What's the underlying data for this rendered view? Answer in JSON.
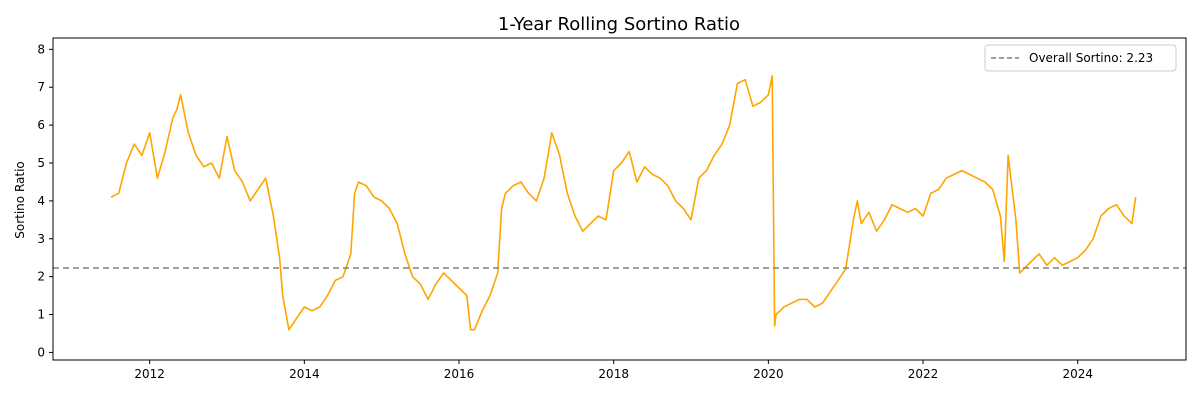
{
  "chart_data": {
    "type": "line",
    "title": "1-Year Rolling Sortino Ratio",
    "xlabel": "",
    "ylabel": "Sortino Ratio",
    "xlim": [
      2010.75,
      2025.4
    ],
    "ylim": [
      -0.2,
      8.3
    ],
    "xticks": [
      2012,
      2014,
      2016,
      2018,
      2020,
      2022,
      2024
    ],
    "yticks": [
      0,
      1,
      2,
      3,
      4,
      5,
      6,
      7,
      8
    ],
    "grid": false,
    "legend_position": "top-right",
    "series": [
      {
        "color": "#FFA500",
        "x": [
          2011.5,
          2011.6,
          2011.7,
          2011.8,
          2011.9,
          2012.0,
          2012.1,
          2012.2,
          2012.3,
          2012.35,
          2012.4,
          2012.5,
          2012.6,
          2012.7,
          2012.8,
          2012.9,
          2013.0,
          2013.1,
          2013.2,
          2013.3,
          2013.4,
          2013.5,
          2013.6,
          2013.68,
          2013.72,
          2013.8,
          2013.9,
          2014.0,
          2014.1,
          2014.2,
          2014.3,
          2014.4,
          2014.5,
          2014.6,
          2014.65,
          2014.7,
          2014.8,
          2014.9,
          2015.0,
          2015.1,
          2015.2,
          2015.3,
          2015.4,
          2015.5,
          2015.6,
          2015.7,
          2015.8,
          2015.9,
          2016.0,
          2016.1,
          2016.15,
          2016.2,
          2016.3,
          2016.4,
          2016.5,
          2016.55,
          2016.6,
          2016.7,
          2016.8,
          2016.9,
          2017.0,
          2017.1,
          2017.2,
          2017.3,
          2017.4,
          2017.5,
          2017.6,
          2017.7,
          2017.8,
          2017.9,
          2018.0,
          2018.1,
          2018.2,
          2018.3,
          2018.4,
          2018.5,
          2018.6,
          2018.7,
          2018.8,
          2018.9,
          2019.0,
          2019.1,
          2019.2,
          2019.3,
          2019.4,
          2019.5,
          2019.6,
          2019.7,
          2019.8,
          2019.9,
          2020.0,
          2020.05,
          2020.08,
          2020.1,
          2020.2,
          2020.3,
          2020.4,
          2020.5,
          2020.6,
          2020.7,
          2020.8,
          2020.9,
          2021.0,
          2021.1,
          2021.15,
          2021.2,
          2021.3,
          2021.4,
          2021.5,
          2021.6,
          2021.7,
          2021.8,
          2021.9,
          2022.0,
          2022.1,
          2022.2,
          2022.3,
          2022.4,
          2022.5,
          2022.6,
          2022.7,
          2022.8,
          2022.9,
          2023.0,
          2023.05,
          2023.1,
          2023.2,
          2023.25,
          2023.3,
          2023.4,
          2023.5,
          2023.6,
          2023.7,
          2023.8,
          2023.9,
          2024.0,
          2024.1,
          2024.2,
          2024.3,
          2024.4,
          2024.5,
          2024.6,
          2024.7,
          2024.75
        ],
        "y": [
          4.1,
          4.2,
          5.0,
          5.5,
          5.2,
          5.8,
          4.6,
          5.3,
          6.2,
          6.4,
          6.8,
          5.8,
          5.2,
          4.9,
          5.0,
          4.6,
          5.7,
          4.8,
          4.5,
          4.0,
          4.3,
          4.6,
          3.6,
          2.5,
          1.5,
          0.6,
          0.9,
          1.2,
          1.1,
          1.2,
          1.5,
          1.9,
          2.0,
          2.6,
          4.2,
          4.5,
          4.4,
          4.1,
          4.0,
          3.8,
          3.4,
          2.6,
          2.0,
          1.8,
          1.4,
          1.8,
          2.1,
          1.9,
          1.7,
          1.5,
          0.6,
          0.6,
          1.1,
          1.5,
          2.1,
          3.8,
          4.2,
          4.4,
          4.5,
          4.2,
          4.0,
          4.6,
          5.8,
          5.2,
          4.2,
          3.6,
          3.2,
          3.4,
          3.6,
          3.5,
          4.8,
          5.0,
          5.3,
          4.5,
          4.9,
          4.7,
          4.6,
          4.4,
          4.0,
          3.8,
          3.5,
          4.6,
          4.8,
          5.2,
          5.5,
          6.0,
          7.1,
          7.2,
          6.5,
          6.6,
          6.8,
          7.3,
          0.7,
          1.0,
          1.2,
          1.3,
          1.4,
          1.4,
          1.2,
          1.3,
          1.6,
          1.9,
          2.2,
          3.5,
          4.0,
          3.4,
          3.7,
          3.2,
          3.5,
          3.9,
          3.8,
          3.7,
          3.8,
          3.6,
          4.2,
          4.3,
          4.6,
          4.7,
          4.8,
          4.7,
          4.6,
          4.5,
          4.3,
          3.6,
          2.4,
          5.2,
          3.5,
          2.1,
          2.2,
          2.4,
          2.6,
          2.3,
          2.5,
          2.3,
          2.4,
          2.5,
          2.7,
          3.0,
          3.6,
          3.8,
          3.9,
          3.6,
          3.4,
          4.1
        ]
      }
    ],
    "reference_lines": [
      {
        "y": 2.23,
        "color": "#808080",
        "style": "dashed",
        "label": "Overall Sortino: 2.23"
      }
    ]
  }
}
